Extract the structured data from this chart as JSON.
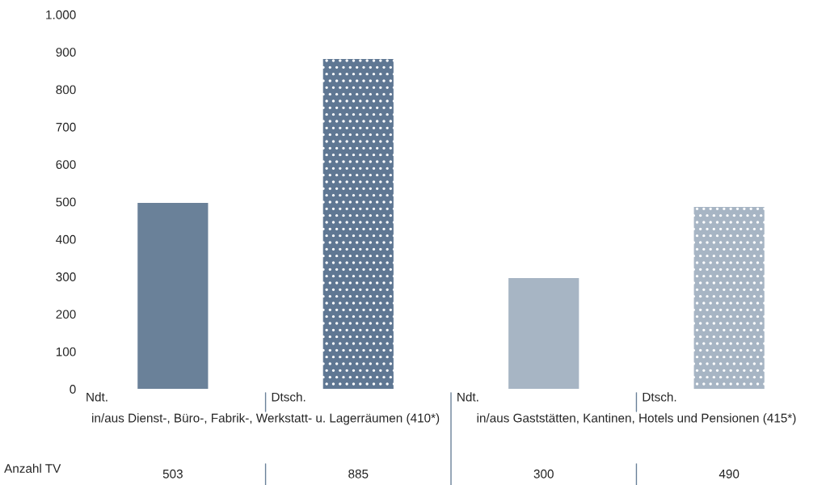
{
  "chart_data": {
    "type": "bar",
    "categories": [
      "Ndt.",
      "Dtsch.",
      "Ndt.",
      "Dtsch."
    ],
    "values": [
      497,
      881,
      296,
      486
    ],
    "colors": [
      "#6a8199",
      "#5f7793",
      "#a7b5c4",
      "#a7b5c4"
    ],
    "ylim": [
      0,
      1000
    ],
    "yticks": [
      0,
      100,
      200,
      300,
      400,
      500,
      600,
      700,
      800,
      900,
      {
        "value": 1000,
        "label": "1.000"
      }
    ],
    "annotations": [
      "in/aus Dienst-, Büro-, Fabrik-, Werkstatt- u. Lagerräumen (410*)",
      "in/aus Gaststätten, Kantinen, Hotels und Pensionen (415*)",
      "Anzahl TV",
      "503",
      "885",
      "300",
      "490"
    ],
    "grid": false,
    "legend": false
  }
}
